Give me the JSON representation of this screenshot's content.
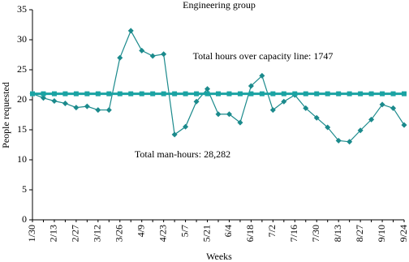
{
  "chart_data": {
    "type": "line",
    "title": "Engineering group",
    "annotations": [
      "Total hours over capacity line: 1747",
      "Total man-hours: 28,282"
    ],
    "x_label": "Weeks",
    "y_label": "People requested",
    "categories": [
      "1/30",
      null,
      "2/13",
      null,
      "2/27",
      null,
      "3/12",
      null,
      "3/26",
      null,
      "4/9",
      null,
      "4/23",
      null,
      "5/7",
      null,
      "5/21",
      null,
      "6/4",
      null,
      "6/18",
      null,
      "7/2",
      null,
      "7/16",
      null,
      "7/30",
      null,
      "8/13",
      null,
      "8/27",
      null,
      "9/10",
      null,
      "9/24"
    ],
    "series": [
      {
        "color": "#1b8a8c",
        "marker": "diamond",
        "values": [
          21,
          20.3,
          19.8,
          19.4,
          18.7,
          18.9,
          18.3,
          18.3,
          27,
          31.5,
          28.2,
          27.3,
          27.6,
          14.2,
          15.5,
          19.7,
          21.8,
          17.6,
          17.6,
          16.2,
          22.3,
          24,
          18.3,
          19.7,
          20.8,
          18.6,
          17,
          15.4,
          13.2,
          13,
          14.9,
          16.7,
          19.2,
          18.6,
          15.8
        ]
      },
      {
        "color": "#1aa3a3",
        "marker": "square",
        "values": [
          21,
          21,
          21,
          21,
          21,
          21,
          21,
          21,
          21,
          21,
          21,
          21,
          21,
          21,
          21,
          21,
          21,
          21,
          21,
          21,
          21,
          21,
          21,
          21,
          21,
          21,
          21,
          21,
          21,
          21,
          21,
          21,
          21,
          21,
          21
        ]
      }
    ],
    "ylim": [
      0,
      35
    ],
    "yticks": [
      0,
      5,
      10,
      15,
      20,
      25,
      30,
      35
    ]
  }
}
